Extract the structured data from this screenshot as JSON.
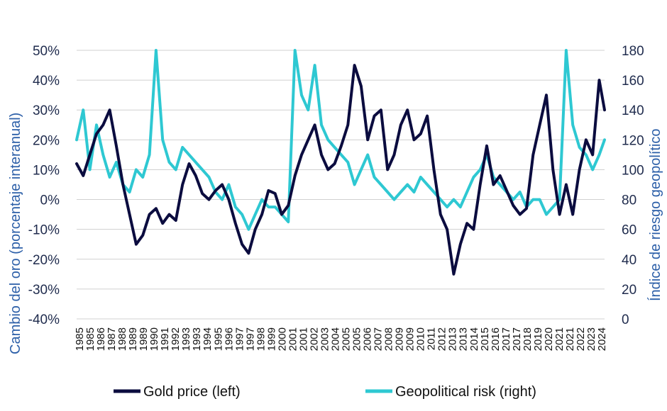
{
  "chart_data": {
    "type": "line",
    "title": "",
    "ylabel_left": "Cambio del oro (porcentaje interanual)",
    "ylabel_right": "Índice de riesgo geopolítico",
    "ylim_left": [
      -40,
      50
    ],
    "ylim_right": [
      0,
      180
    ],
    "left_ticks": [
      "50%",
      "40%",
      "30%",
      "20%",
      "10%",
      "0%",
      "-10%",
      "-20%",
      "-30%",
      "-40%"
    ],
    "right_ticks": [
      "180",
      "160",
      "140",
      "120",
      "100",
      "80",
      "60",
      "40",
      "20",
      "0"
    ],
    "x_tick_labels": [
      "1985",
      "1985",
      "1986",
      "1987",
      "1988",
      "1989",
      "1989",
      "1990",
      "1991",
      "1992",
      "1993",
      "1993",
      "1994",
      "1995",
      "1996",
      "1997",
      "1997",
      "1998",
      "1999",
      "2000",
      "2001",
      "2001",
      "2002",
      "2003",
      "2004",
      "2005",
      "2005",
      "2006",
      "2007",
      "2008",
      "2009",
      "2009",
      "2010",
      "2011",
      "2012",
      "2013",
      "2013",
      "2014",
      "2015",
      "2016",
      "2017",
      "2017",
      "2018",
      "2019",
      "2020",
      "2021",
      "2021",
      "2022",
      "2023",
      "2024"
    ],
    "x_range": [
      1985.0,
      2024.9
    ],
    "grid": true,
    "legend_position": "bottom",
    "colors": {
      "gold": "#0b0c3f",
      "risk": "#2ec8d2",
      "grid": "#d0d0d0",
      "axis_label": "#2c5fa8"
    },
    "series": [
      {
        "name": "Gold price (left)",
        "axis": "left",
        "x": [
          1985.0,
          1985.5,
          1986.0,
          1986.5,
          1987.0,
          1987.5,
          1988.0,
          1988.5,
          1989.0,
          1989.5,
          1990.0,
          1990.5,
          1991.0,
          1991.5,
          1992.0,
          1992.5,
          1993.0,
          1993.5,
          1994.0,
          1994.5,
          1995.0,
          1995.5,
          1996.0,
          1996.5,
          1997.0,
          1997.5,
          1998.0,
          1998.5,
          1999.0,
          1999.5,
          2000.0,
          2000.5,
          2001.0,
          2001.5,
          2002.0,
          2002.5,
          2003.0,
          2003.5,
          2004.0,
          2004.5,
          2005.0,
          2005.5,
          2006.0,
          2006.5,
          2007.0,
          2007.5,
          2008.0,
          2008.5,
          2009.0,
          2009.5,
          2010.0,
          2010.5,
          2011.0,
          2011.5,
          2012.0,
          2012.5,
          2013.0,
          2013.5,
          2014.0,
          2014.5,
          2015.0,
          2015.5,
          2016.0,
          2016.5,
          2017.0,
          2017.5,
          2018.0,
          2018.5,
          2019.0,
          2019.5,
          2020.0,
          2020.5,
          2021.0,
          2021.5,
          2022.0,
          2022.5,
          2023.0,
          2023.5,
          2024.0,
          2024.5,
          2024.9
        ],
        "values": [
          12,
          8,
          15,
          22,
          25,
          30,
          18,
          5,
          -5,
          -15,
          -12,
          -5,
          -3,
          -8,
          -5,
          -7,
          5,
          12,
          8,
          2,
          0,
          3,
          5,
          0,
          -8,
          -15,
          -18,
          -10,
          -5,
          3,
          2,
          -5,
          -2,
          8,
          15,
          20,
          25,
          15,
          10,
          12,
          18,
          25,
          45,
          38,
          20,
          28,
          30,
          10,
          15,
          25,
          30,
          20,
          22,
          28,
          10,
          -5,
          -10,
          -25,
          -15,
          -8,
          -10,
          5,
          18,
          5,
          8,
          3,
          -2,
          -5,
          -3,
          15,
          25,
          35,
          10,
          -5,
          5,
          -5,
          10,
          20,
          15,
          40,
          30
        ]
      },
      {
        "name": "Geopolitical risk (right)",
        "axis": "right",
        "x": [
          1985.0,
          1985.5,
          1986.0,
          1986.5,
          1987.0,
          1987.5,
          1988.0,
          1988.5,
          1989.0,
          1989.5,
          1990.0,
          1990.5,
          1991.0,
          1991.5,
          1992.0,
          1992.5,
          1993.0,
          1993.5,
          1994.0,
          1994.5,
          1995.0,
          1995.5,
          1996.0,
          1996.5,
          1997.0,
          1997.5,
          1998.0,
          1998.5,
          1999.0,
          1999.5,
          2000.0,
          2000.5,
          2001.0,
          2001.5,
          2002.0,
          2002.5,
          2003.0,
          2003.5,
          2004.0,
          2004.5,
          2005.0,
          2005.5,
          2006.0,
          2006.5,
          2007.0,
          2007.5,
          2008.0,
          2008.5,
          2009.0,
          2009.5,
          2010.0,
          2010.5,
          2011.0,
          2011.5,
          2012.0,
          2012.5,
          2013.0,
          2013.5,
          2014.0,
          2014.5,
          2015.0,
          2015.5,
          2016.0,
          2016.5,
          2017.0,
          2017.5,
          2018.0,
          2018.5,
          2019.0,
          2019.5,
          2020.0,
          2020.5,
          2021.0,
          2021.5,
          2022.0,
          2022.5,
          2023.0,
          2023.5,
          2024.0,
          2024.5,
          2024.9
        ],
        "values": [
          120,
          140,
          100,
          130,
          110,
          95,
          105,
          90,
          85,
          100,
          95,
          110,
          180,
          120,
          105,
          100,
          115,
          110,
          105,
          100,
          95,
          85,
          80,
          90,
          75,
          70,
          60,
          70,
          80,
          75,
          75,
          70,
          65,
          180,
          150,
          140,
          170,
          130,
          120,
          115,
          110,
          105,
          90,
          100,
          110,
          95,
          90,
          85,
          80,
          85,
          90,
          85,
          95,
          90,
          85,
          80,
          75,
          80,
          75,
          85,
          95,
          100,
          110,
          95,
          90,
          85,
          80,
          85,
          75,
          80,
          80,
          70,
          75,
          80,
          180,
          130,
          115,
          110,
          100,
          110,
          120
        ]
      }
    ]
  }
}
